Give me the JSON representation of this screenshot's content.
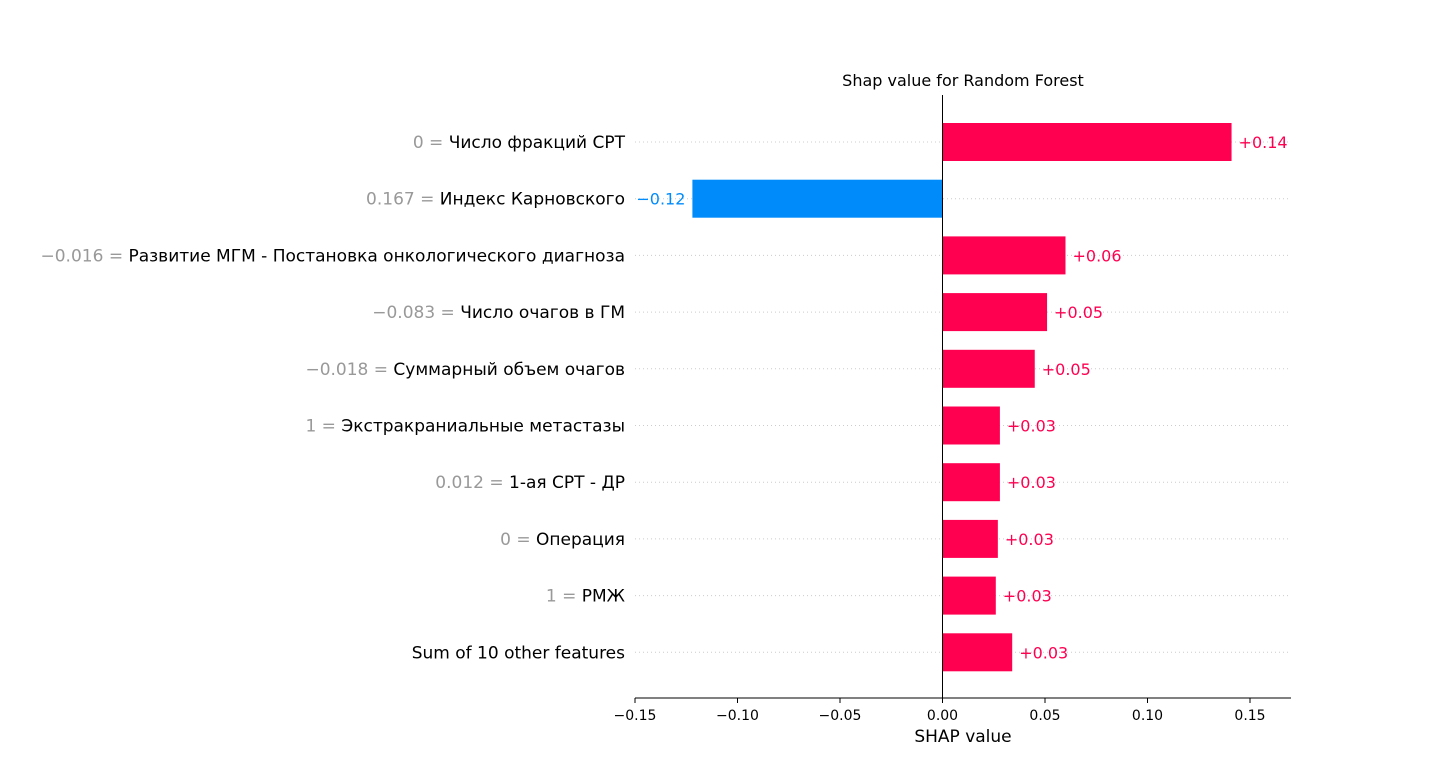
{
  "chart_data": {
    "type": "bar",
    "orientation": "horizontal",
    "title": "Shap value for Random Forest",
    "xlabel": "SHAP value",
    "xlim": [
      -0.15,
      0.17
    ],
    "xticks": [
      -0.15,
      -0.1,
      -0.05,
      0.0,
      0.05,
      0.1,
      0.15
    ],
    "xtick_labels": [
      "−0.15",
      "−0.10",
      "−0.05",
      "0.00",
      "0.05",
      "0.10",
      "0.15"
    ],
    "grid": "horizontal dotted guide lines per row",
    "colors": {
      "positive": "#ff0051",
      "negative": "#008bfb",
      "feature_value": "#999999"
    },
    "rows": [
      {
        "feature_value": "0",
        "feature": "Число фракций СРТ",
        "shap": 0.141,
        "label": "+0.14"
      },
      {
        "feature_value": "0.167",
        "feature": "Индекс Карновского",
        "shap": -0.122,
        "label": "−0.12"
      },
      {
        "feature_value": "−0.016",
        "feature": "Развитие МГМ - Постановка онкологического диагноза",
        "shap": 0.06,
        "label": "+0.06"
      },
      {
        "feature_value": "−0.083",
        "feature": "Число очагов в ГМ",
        "shap": 0.051,
        "label": "+0.05"
      },
      {
        "feature_value": "−0.018",
        "feature": "Суммарный объем очагов",
        "shap": 0.045,
        "label": "+0.05"
      },
      {
        "feature_value": "1",
        "feature": "Экстракраниальные метастазы",
        "shap": 0.028,
        "label": "+0.03"
      },
      {
        "feature_value": "0.012",
        "feature": "1-ая СРТ - ДР",
        "shap": 0.028,
        "label": "+0.03"
      },
      {
        "feature_value": "0",
        "feature": "Операция",
        "shap": 0.027,
        "label": "+0.03"
      },
      {
        "feature_value": "1",
        "feature": "РМЖ",
        "shap": 0.026,
        "label": "+0.03"
      },
      {
        "feature_value": "",
        "feature": "Sum of 10 other features",
        "shap": 0.034,
        "label": "+0.03"
      }
    ]
  }
}
